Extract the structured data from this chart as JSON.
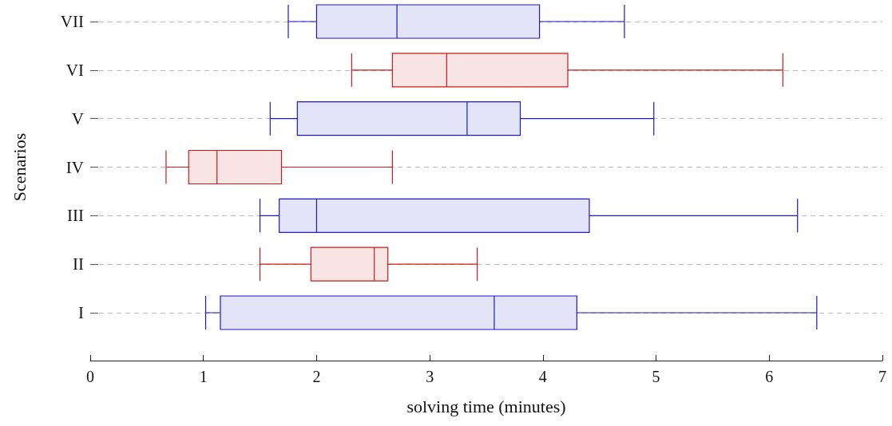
{
  "chart_data": {
    "type": "box",
    "orientation": "horizontal",
    "xlabel": "solving time (minutes)",
    "ylabel": "Scenarios",
    "categories": [
      "VII",
      "VI",
      "V",
      "IV",
      "III",
      "II",
      "I"
    ],
    "boxes": [
      {
        "low": 1.75,
        "q1": 2.0,
        "median": 2.71,
        "q3": 3.97,
        "high": 4.72
      },
      {
        "low": 2.31,
        "q1": 2.67,
        "median": 3.15,
        "q3": 4.22,
        "high": 6.12
      },
      {
        "low": 1.59,
        "q1": 1.83,
        "median": 3.33,
        "q3": 3.8,
        "high": 4.98
      },
      {
        "low": 0.67,
        "q1": 0.87,
        "median": 1.12,
        "q3": 1.69,
        "high": 2.67
      },
      {
        "low": 1.5,
        "q1": 1.67,
        "median": 2.0,
        "q3": 4.41,
        "high": 6.25
      },
      {
        "low": 1.5,
        "q1": 1.95,
        "median": 2.51,
        "q3": 2.63,
        "high": 3.42
      },
      {
        "low": 1.02,
        "q1": 1.15,
        "median": 3.57,
        "q3": 4.3,
        "high": 6.42
      }
    ],
    "colors": [
      "#1a1acc",
      "#cc1a1a",
      "#1a1acc",
      "#cc1a1a",
      "#1a1acc",
      "#cc1a1a",
      "#1a1acc"
    ],
    "xlim": [
      0,
      7
    ],
    "xticks": [
      0,
      1,
      2,
      3,
      4,
      5,
      6,
      7
    ],
    "grid": "y"
  }
}
